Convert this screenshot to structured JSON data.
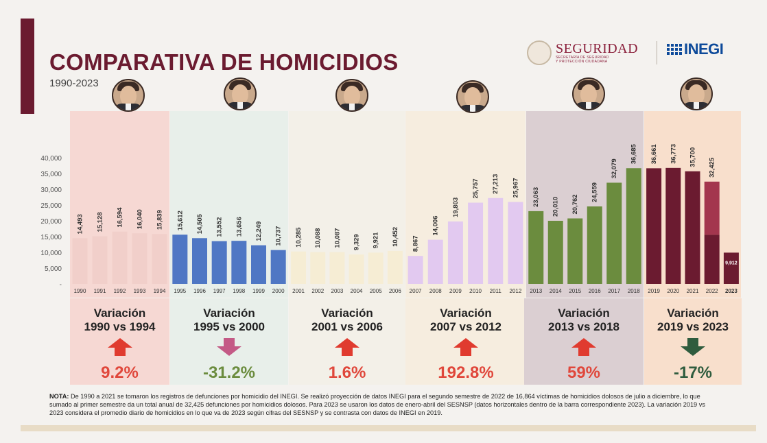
{
  "header": {
    "title": "COMPARATIVA DE HOMICIDIOS",
    "subtitle": "1990-2023"
  },
  "logos": {
    "seguridad": {
      "name": "SEGURIDAD",
      "sub1": "SECRETARÍA DE SEGURIDAD",
      "sub2": "Y PROTECCIÓN CIUDADANA"
    },
    "inegi": {
      "name": "INEGI"
    }
  },
  "colors": {
    "brand": "#6b1b30",
    "up_arrow": "#e03b2f",
    "down_arrow_mauve": "#c45a86",
    "down_arrow_green": "#2f5c3e"
  },
  "chart_data": {
    "type": "bar",
    "title": "COMPARATIVA DE HOMICIDIOS 1990-2023",
    "xlabel": "",
    "ylabel": "",
    "ylim": [
      0,
      40000
    ],
    "y_ticks": [
      "-",
      "5,000",
      "10,000",
      "15,000",
      "20,000",
      "25,000",
      "30,000",
      "35,000",
      "40,000"
    ],
    "categories": [
      "1990",
      "1991",
      "1992",
      "1993",
      "1994",
      "1995",
      "1996",
      "1997",
      "1998",
      "1999",
      "2000",
      "2001",
      "2002",
      "2003",
      "2004",
      "2005",
      "2006",
      "2007",
      "2008",
      "2009",
      "2010",
      "2011",
      "2012",
      "2013",
      "2014",
      "2015",
      "2016",
      "2017",
      "2018",
      "2019",
      "2020",
      "2021",
      "2022",
      "2023"
    ],
    "values": [
      14493,
      15128,
      16594,
      16040,
      15839,
      15612,
      14505,
      13552,
      13656,
      12249,
      10737,
      10285,
      10088,
      10087,
      9329,
      9921,
      10452,
      8867,
      14006,
      19803,
      25757,
      27213,
      25967,
      23063,
      20010,
      20762,
      24559,
      32079,
      36685,
      36661,
      36773,
      35700,
      32425,
      9912
    ],
    "value_labels": [
      "14,493",
      "15,128",
      "16,594",
      "16,040",
      "15,839",
      "15,612",
      "14,505",
      "13,552",
      "13,656",
      "12,249",
      "10,737",
      "10,285",
      "10,088",
      "10,087",
      "9,329",
      "9,921",
      "10,452",
      "8,867",
      "14,006",
      "19,803",
      "25,757",
      "27,213",
      "25,967",
      "23,063",
      "20,010",
      "20,762",
      "24,559",
      "32,079",
      "36,685",
      "36,661",
      "36,773",
      "35,700",
      "32,425",
      "9,912"
    ],
    "stacked_2022": {
      "first_half": 15561,
      "second_half_projection": 16864
    },
    "periods": [
      {
        "years": "1990-1994",
        "bar_color": "#f1cfca",
        "bg_color": "#f6d8d3"
      },
      {
        "years": "1995-2000",
        "bar_color": "#4f77c4",
        "bg_color": "#e8efea"
      },
      {
        "years": "2001-2006",
        "bar_color": "#f6edd4",
        "bg_color": "#f3f0e8"
      },
      {
        "years": "2007-2012",
        "bar_color": "#e2c9f0",
        "bg_color": "#f6eddf"
      },
      {
        "years": "2013-2018",
        "bar_color": "#6b8c3e",
        "bg_color": "#dbcfd2"
      },
      {
        "years": "2019-2023",
        "bar_color": "#6b1b30",
        "bg_color": "#f8dfcc"
      }
    ]
  },
  "variations": [
    {
      "line1": "Variación",
      "line2": "1990 vs 1994",
      "value": "9.2%",
      "direction": "up",
      "value_color": "#e0473b",
      "bg": "#f6d8d3"
    },
    {
      "line1": "Variación",
      "line2": "1995 vs 2000",
      "value": "-31.2%",
      "direction": "down",
      "value_color": "#6b8c3e",
      "bg": "#e8efea"
    },
    {
      "line1": "Variación",
      "line2": "2001 vs 2006",
      "value": "1.6%",
      "direction": "up",
      "value_color": "#e0473b",
      "bg": "#f3f0e8"
    },
    {
      "line1": "Variación",
      "line2": "2007 vs 2012",
      "value": "192.8%",
      "direction": "up",
      "value_color": "#e0473b",
      "bg": "#f6eddf"
    },
    {
      "line1": "Variación",
      "line2": "2013 vs 2018",
      "value": "59%",
      "direction": "up",
      "value_color": "#e0473b",
      "bg": "#dbcfd2"
    },
    {
      "line1": "Variación",
      "line2": "2019 vs 2023",
      "value": "-17%",
      "direction": "down",
      "value_color": "#2f5c3e",
      "bg": "#f8dfcc"
    }
  ],
  "note": {
    "label": "NOTA:",
    "text": " De 1990 a 2021 se tomaron los registros de defunciones por homicidio del INEGI. Se realizó proyección de datos INEGI para el segundo semestre de 2022 de 16,864 víctimas de homicidios dolosos de julio a diciembre, lo que sumado al primer semestre da un total anual de 32,425 defunciones por homicidios dolosos. Para 2023 se usaron los datos de enero-abril del SESNSP (datos horizontales dentro de la barra correspondiente 2023). La variación 2019 vs 2023 considera el promedio diario de homicidios en lo que va de 2023 según cifras del SESNSP y se contrasta con datos de INEGI en 2019."
  }
}
